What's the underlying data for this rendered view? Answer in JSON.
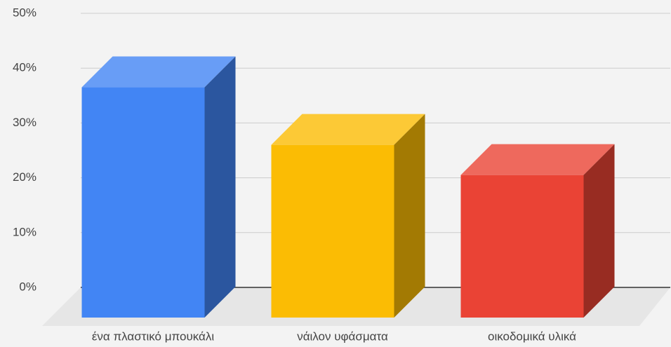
{
  "chart_data": {
    "type": "bar3d",
    "categories": [
      "ένα πλαστικό μπουκάλι",
      "νάιλον υφάσματα",
      "οικοδομικά υλικά"
    ],
    "values": [
      42,
      31.5,
      26
    ],
    "colors": [
      "#4285f4",
      "#fbbc04",
      "#ea4335"
    ],
    "ylim": [
      0,
      50
    ],
    "yticks": [
      {
        "value": 0,
        "label": "0%"
      },
      {
        "value": 10,
        "label": "10%"
      },
      {
        "value": 20,
        "label": "20%"
      },
      {
        "value": 30,
        "label": "30%"
      },
      {
        "value": 40,
        "label": "40%"
      },
      {
        "value": 50,
        "label": "50%"
      }
    ],
    "grid": true
  }
}
